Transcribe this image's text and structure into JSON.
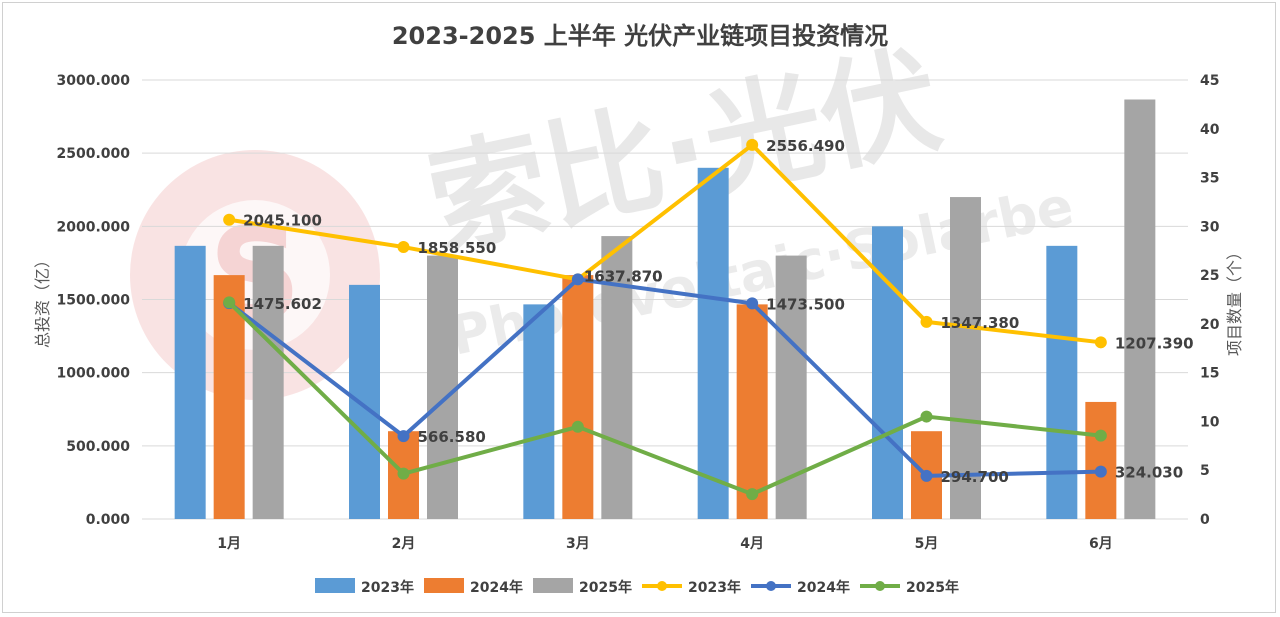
{
  "chart_data": {
    "type": "bar+line",
    "title": "2023-2025 上半年 光伏产业链项目投资情况",
    "categories": [
      "1月",
      "2月",
      "3月",
      "4月",
      "5月",
      "6月"
    ],
    "ylabel_left": "总投资（亿）",
    "ylabel_right": "项目数量（个）",
    "ylim_left": [
      0,
      3000
    ],
    "ylim_right": [
      0,
      45
    ],
    "yticks_left": [
      "0.000",
      "500.000",
      "1000.000",
      "1500.000",
      "2000.000",
      "2500.000",
      "3000.000"
    ],
    "yticks_right": [
      "0",
      "5",
      "10",
      "15",
      "20",
      "25",
      "30",
      "35",
      "40",
      "45"
    ],
    "bar_axis": "right",
    "line_axis": "left",
    "bar_series": [
      {
        "name": "2023年",
        "color": "#5b9bd5",
        "values": [
          28,
          24,
          22,
          36,
          30,
          28
        ]
      },
      {
        "name": "2024年",
        "color": "#ed7d31",
        "values": [
          25,
          9,
          25,
          22,
          9,
          12
        ]
      },
      {
        "name": "2025年",
        "color": "#a5a5a5",
        "values": [
          28,
          27,
          29,
          27,
          33,
          43
        ]
      }
    ],
    "line_series": [
      {
        "name": "2023年",
        "color": "#ffc000",
        "values": [
          2045.1,
          1858.55,
          1637.87,
          2556.49,
          1347.38,
          1207.39
        ],
        "labels": [
          "2045.100",
          "1858.550",
          "1637.870",
          "2556.490",
          "1347.380",
          "1207.390"
        ]
      },
      {
        "name": "2024年",
        "color": "#4472c4",
        "values": [
          1475.602,
          566.58,
          1637.87,
          1473.5,
          294.7,
          324.03
        ],
        "labels": [
          "1475.602",
          "566.580",
          "1637.870",
          "1473.500",
          "294.700",
          "324.030"
        ]
      },
      {
        "name": "2025年",
        "color": "#70ad47",
        "values": [
          1480,
          310,
          630,
          170,
          700,
          570
        ],
        "labels": []
      }
    ],
    "legend_position": "bottom",
    "grid": true
  },
  "watermark": {
    "text_cn": "索比·光伏",
    "text_en": "Photovoltaic·Solarbe",
    "logo_letter": "S"
  }
}
